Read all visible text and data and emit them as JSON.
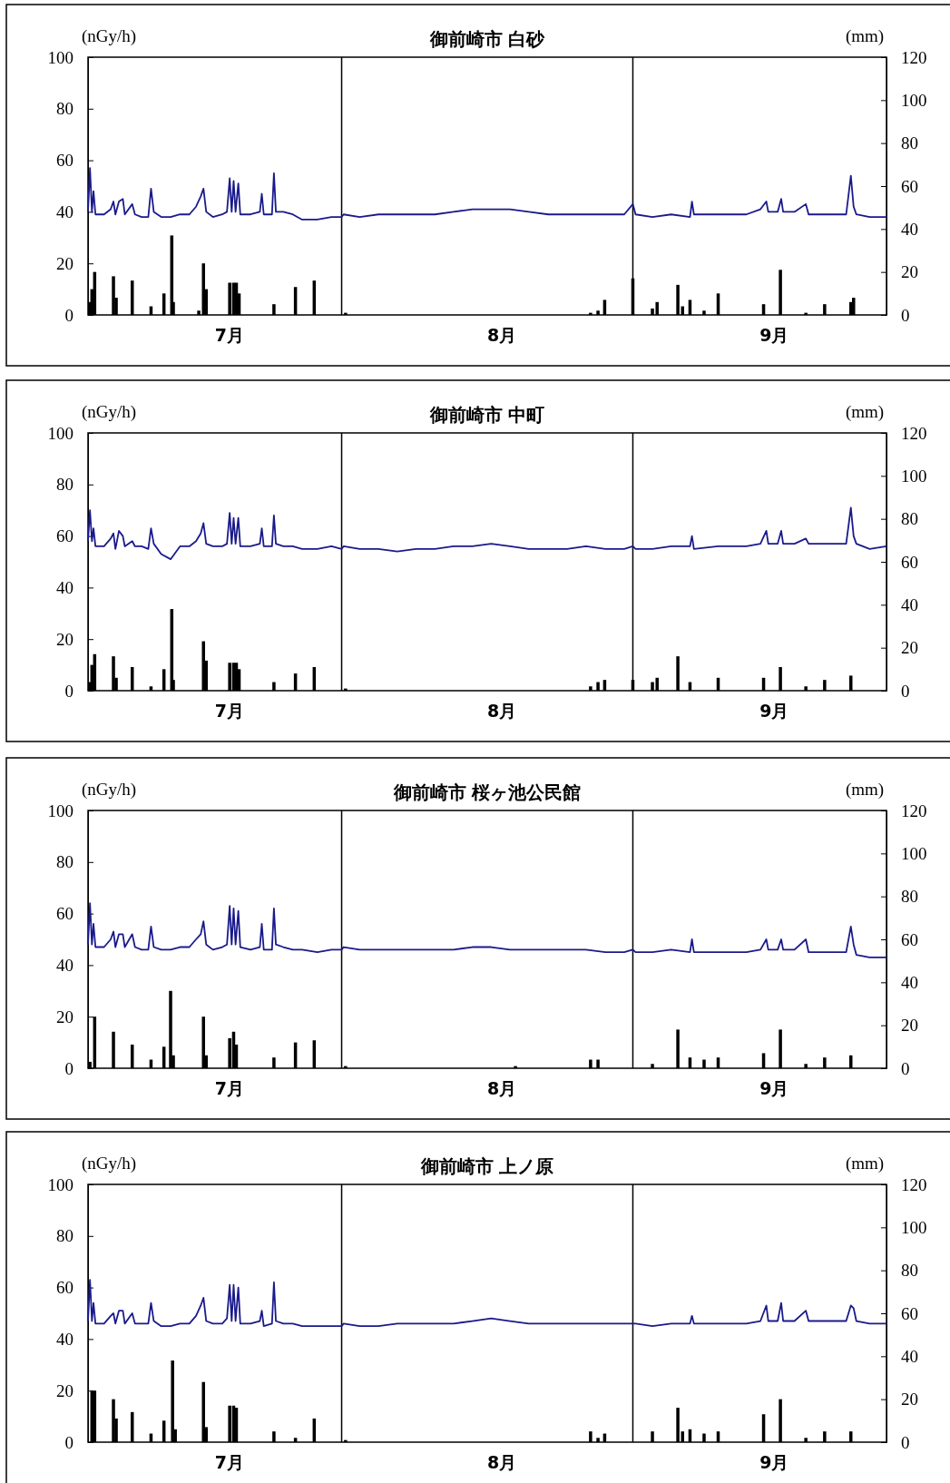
{
  "chart_data": [
    {
      "type": "line",
      "title": "御前崎市 白砂",
      "ylabel": "(nGy/h)",
      "y2label": "(mm)",
      "xlim": [
        "--07-05T00:00",
        "--09-28T00:00"
      ],
      "xticks": [
        {
          "value": "--07-20",
          "label": "7月"
        },
        {
          "value": "--08-18",
          "label": "8月"
        },
        {
          "value": "--09-16",
          "label": "9月"
        }
      ],
      "ylim": [
        0,
        100
      ],
      "yticks": [
        0,
        20,
        40,
        60,
        80,
        100
      ],
      "y2lim": [
        0,
        120
      ],
      "y2ticks": [
        0,
        20,
        40,
        60,
        80,
        100,
        120
      ],
      "ref_lines": [
        {
          "axis": "x",
          "value": "--08-01",
          "color": "#000000"
        },
        {
          "axis": "x",
          "value": "--09-01",
          "color": "#000000"
        }
      ],
      "series": [
        {
          "color": "#1a1a8c",
          "x": [
            "--07-05T00:00",
            "--07-05T05:00",
            "--07-05T10:00",
            "--07-05T14:00",
            "--07-05T19:00",
            "--07-06T17:00",
            "--07-07T10:00",
            "--07-07T17:00",
            "--07-07T22:00",
            "--07-08T07:00",
            "--07-08T17:00",
            "--07-08T22:00",
            "--07-09T17:00",
            "--07-10T00:00",
            "--07-10T17:00",
            "--07-11T10:00",
            "--07-11T17:00",
            "--07-12T00:00",
            "--07-12T19:00",
            "--07-13T19:00",
            "--07-14T19:00",
            "--07-15T19:00",
            "--07-16T12:00",
            "--07-17T00:00",
            "--07-17T07:00",
            "--07-17T14:00",
            "--07-18T07:00",
            "--07-19T07:00",
            "--07-19T19:00",
            "--07-20T02:00",
            "--07-20T07:00",
            "--07-20T12:00",
            "--07-20T17:00",
            "--07-21T00:00",
            "--07-21T05:00",
            "--07-22T07:00",
            "--07-23T07:00",
            "--07-23T12:00",
            "--07-23T17:00",
            "--07-24T14:00",
            "--07-24T19:00",
            "--07-25T00:00",
            "--07-25T19:00",
            "--07-26T19:00",
            "--07-27T19:00",
            "--07-29T10:00",
            "--07-30T22:00",
            "--08-01T00:00",
            "--08-01T05:00",
            "--08-02T22:00",
            "--08-04T22:00",
            "--08-06T22:00",
            "--08-08T22:00",
            "--08-10T22:00",
            "--08-12T22:00",
            "--08-14T22:00",
            "--08-16T22:00",
            "--08-18T22:00",
            "--08-20T22:00",
            "--08-23T00:00",
            "--08-25T00:00",
            "--08-27T00:00",
            "--08-29T02:00",
            "--08-31T02:00",
            "--09-01T00:00",
            "--09-01T07:00",
            "--09-03T02:00",
            "--09-05T02:00",
            "--09-07T02:00",
            "--09-07T07:00",
            "--09-07T12:00",
            "--09-10T02:00",
            "--09-13T02:00",
            "--09-14T14:00",
            "--09-15T05:00",
            "--09-15T10:00",
            "--09-16T10:00",
            "--09-16T19:00",
            "--09-17T00:00",
            "--09-18T05:00",
            "--09-19T10:00",
            "--09-19T17:00",
            "--09-21T17:00",
            "--09-23T17:00",
            "--09-24T05:00",
            "--09-24T12:00",
            "--09-24T19:00",
            "--09-26T05:00",
            "--09-28T00:00"
          ],
          "values": [
            40,
            57,
            40,
            48,
            39,
            39,
            41,
            44,
            39,
            44,
            45,
            39,
            43,
            39,
            38,
            38,
            49,
            40,
            38,
            38,
            39,
            39,
            42,
            46,
            49,
            40,
            38,
            39,
            40,
            53,
            40,
            52,
            40,
            51,
            39,
            39,
            40,
            47,
            39,
            39,
            55,
            40,
            40,
            39,
            37,
            37,
            38,
            38,
            39,
            38,
            39,
            39,
            39,
            39,
            40,
            41,
            41,
            41,
            40,
            39,
            39,
            39,
            39,
            39,
            43,
            39,
            38,
            39,
            38,
            44,
            39,
            39,
            39,
            41,
            44,
            40,
            40,
            45,
            40,
            40,
            43,
            39,
            39,
            39,
            54,
            42,
            39,
            38,
            38
          ]
        },
        {
          "type": "bar",
          "axis": "y2",
          "color": "#000000",
          "x": [
            "--07-05T05:00",
            "--07-05T10:00",
            "--07-05T17:00",
            "--07-07T17:00",
            "--07-08T00:00",
            "--07-09T17:00",
            "--07-11T17:00",
            "--07-13T02:00",
            "--07-13T22:00",
            "--07-14T02:00",
            "--07-16T19:00",
            "--07-17T07:00",
            "--07-17T14:00",
            "--07-20T02:00",
            "--07-20T12:00",
            "--07-20T19:00",
            "--07-21T02:00",
            "--07-24T19:00",
            "--07-27T02:00",
            "--07-29T02:00",
            "--08-01T10:00",
            "--08-27T12:00",
            "--08-28T07:00",
            "--08-29T00:00",
            "--09-01T00:00",
            "--09-03T02:00",
            "--09-03T14:00",
            "--09-05T19:00",
            "--09-06T07:00",
            "--09-07T02:00",
            "--09-08T14:00",
            "--09-10T02:00",
            "--09-14T22:00",
            "--09-16T17:00",
            "--09-19T10:00",
            "--09-21T10:00",
            "--09-24T05:00",
            "--09-24T12:00"
          ],
          "values": [
            6,
            12,
            20,
            18,
            8,
            16,
            4,
            10,
            37,
            6,
            2,
            24,
            12,
            15,
            15,
            15,
            10,
            5,
            13,
            16,
            1,
            1,
            2,
            7,
            17,
            3,
            6,
            14,
            4,
            7,
            2,
            10,
            5,
            21,
            1,
            5,
            6,
            8
          ]
        }
      ]
    },
    {
      "type": "line",
      "title": "御前崎市 中町",
      "ylabel": "(nGy/h)",
      "y2label": "(mm)",
      "xlim": [
        "--07-05T00:00",
        "--09-28T00:00"
      ],
      "xticks": [
        {
          "value": "--07-20",
          "label": "7月"
        },
        {
          "value": "--08-18",
          "label": "8月"
        },
        {
          "value": "--09-16",
          "label": "9月"
        }
      ],
      "ylim": [
        0,
        100
      ],
      "yticks": [
        0,
        20,
        40,
        60,
        80,
        100
      ],
      "y2lim": [
        0,
        120
      ],
      "y2ticks": [
        0,
        20,
        40,
        60,
        80,
        100,
        120
      ],
      "ref_lines": [
        {
          "axis": "x",
          "value": "--08-01",
          "color": "#000000"
        },
        {
          "axis": "x",
          "value": "--09-01",
          "color": "#000000"
        }
      ],
      "series": [
        {
          "color": "#1a1a8c",
          "x": [
            "--07-05T00:00",
            "--07-05T05:00",
            "--07-05T10:00",
            "--07-05T14:00",
            "--07-05T19:00",
            "--07-06T17:00",
            "--07-07T10:00",
            "--07-07T17:00",
            "--07-07T22:00",
            "--07-08T07:00",
            "--07-08T17:00",
            "--07-08T22:00",
            "--07-09T17:00",
            "--07-10T00:00",
            "--07-10T17:00",
            "--07-11T10:00",
            "--07-11T17:00",
            "--07-12T00:00",
            "--07-12T19:00",
            "--07-13T19:00",
            "--07-14T19:00",
            "--07-15T19:00",
            "--07-16T12:00",
            "--07-17T00:00",
            "--07-17T07:00",
            "--07-17T14:00",
            "--07-18T07:00",
            "--07-19T07:00",
            "--07-19T19:00",
            "--07-20T02:00",
            "--07-20T07:00",
            "--07-20T12:00",
            "--07-20T17:00",
            "--07-21T00:00",
            "--07-21T05:00",
            "--07-22T07:00",
            "--07-23T07:00",
            "--07-23T12:00",
            "--07-23T17:00",
            "--07-24T14:00",
            "--07-24T19:00",
            "--07-25T00:00",
            "--07-25T19:00",
            "--07-26T19:00",
            "--07-27T19:00",
            "--07-29T10:00",
            "--07-30T22:00",
            "--08-01T00:00",
            "--08-01T05:00",
            "--08-02T22:00",
            "--08-04T22:00",
            "--08-06T22:00",
            "--08-08T22:00",
            "--08-10T22:00",
            "--08-12T22:00",
            "--08-14T22:00",
            "--08-16T22:00",
            "--08-18T22:00",
            "--08-20T22:00",
            "--08-23T00:00",
            "--08-25T00:00",
            "--08-27T00:00",
            "--08-29T02:00",
            "--08-31T02:00",
            "--09-01T00:00",
            "--09-01T07:00",
            "--09-03T02:00",
            "--09-05T02:00",
            "--09-07T02:00",
            "--09-07T07:00",
            "--09-07T12:00",
            "--09-10T02:00",
            "--09-13T02:00",
            "--09-14T14:00",
            "--09-15T05:00",
            "--09-15T10:00",
            "--09-16T10:00",
            "--09-16T19:00",
            "--09-17T00:00",
            "--09-18T05:00",
            "--09-19T10:00",
            "--09-19T17:00",
            "--09-21T17:00",
            "--09-23T17:00",
            "--09-24T05:00",
            "--09-24T12:00",
            "--09-24T19:00",
            "--09-26T05:00",
            "--09-28T00:00"
          ],
          "values": [
            58,
            70,
            58,
            63,
            56,
            56,
            59,
            61,
            55,
            62,
            60,
            56,
            58,
            56,
            56,
            55,
            63,
            57,
            53,
            51,
            56,
            56,
            58,
            61,
            65,
            57,
            56,
            56,
            57,
            69,
            57,
            67,
            57,
            67,
            56,
            56,
            57,
            63,
            56,
            56,
            68,
            57,
            56,
            56,
            55,
            55,
            56,
            55,
            56,
            55,
            55,
            54,
            55,
            55,
            56,
            56,
            57,
            56,
            55,
            55,
            55,
            56,
            55,
            55,
            56,
            55,
            55,
            56,
            56,
            60,
            55,
            56,
            56,
            57,
            62,
            57,
            57,
            62,
            57,
            57,
            59,
            57,
            57,
            57,
            71,
            60,
            57,
            55,
            56
          ]
        },
        {
          "type": "bar",
          "axis": "y2",
          "color": "#000000",
          "x": [
            "--07-05T05:00",
            "--07-05T10:00",
            "--07-05T17:00",
            "--07-07T17:00",
            "--07-08T00:00",
            "--07-09T17:00",
            "--07-11T17:00",
            "--07-13T02:00",
            "--07-13T22:00",
            "--07-14T02:00",
            "--07-17T07:00",
            "--07-17T14:00",
            "--07-20T02:00",
            "--07-20T12:00",
            "--07-20T19:00",
            "--07-21T02:00",
            "--07-24T19:00",
            "--07-27T02:00",
            "--07-29T02:00",
            "--08-01T10:00",
            "--08-27T12:00",
            "--08-28T07:00",
            "--08-29T00:00",
            "--09-01T00:00",
            "--09-03T02:00",
            "--09-03T14:00",
            "--09-05T19:00",
            "--09-07T02:00",
            "--09-10T02:00",
            "--09-14T22:00",
            "--09-16T17:00",
            "--09-19T10:00",
            "--09-21T10:00",
            "--09-24T05:00"
          ],
          "values": [
            4,
            12,
            17,
            16,
            6,
            11,
            2,
            10,
            38,
            5,
            23,
            14,
            13,
            13,
            13,
            10,
            4,
            8,
            11,
            1,
            2,
            4,
            5,
            5,
            4,
            6,
            16,
            4,
            6,
            6,
            11,
            2,
            5,
            7
          ]
        }
      ]
    },
    {
      "type": "line",
      "title": "御前崎市 桜ヶ池公民館",
      "ylabel": "(nGy/h)",
      "y2label": "(mm)",
      "xlim": [
        "--07-05T00:00",
        "--09-28T00:00"
      ],
      "xticks": [
        {
          "value": "--07-20",
          "label": "7月"
        },
        {
          "value": "--08-18",
          "label": "8月"
        },
        {
          "value": "--09-16",
          "label": "9月"
        }
      ],
      "ylim": [
        0,
        100
      ],
      "yticks": [
        0,
        20,
        40,
        60,
        80,
        100
      ],
      "y2lim": [
        0,
        120
      ],
      "y2ticks": [
        0,
        20,
        40,
        60,
        80,
        100,
        120
      ],
      "ref_lines": [
        {
          "axis": "x",
          "value": "--08-01",
          "color": "#000000"
        },
        {
          "axis": "x",
          "value": "--09-01",
          "color": "#000000"
        }
      ],
      "series": [
        {
          "color": "#1a1a8c",
          "x": [
            "--07-05T00:00",
            "--07-05T05:00",
            "--07-05T10:00",
            "--07-05T14:00",
            "--07-05T19:00",
            "--07-06T17:00",
            "--07-07T10:00",
            "--07-07T17:00",
            "--07-07T22:00",
            "--07-08T07:00",
            "--07-08T17:00",
            "--07-08T22:00",
            "--07-09T17:00",
            "--07-10T00:00",
            "--07-10T17:00",
            "--07-11T10:00",
            "--07-11T17:00",
            "--07-12T00:00",
            "--07-12T19:00",
            "--07-13T19:00",
            "--07-14T19:00",
            "--07-15T19:00",
            "--07-16T12:00",
            "--07-17T00:00",
            "--07-17T07:00",
            "--07-17T14:00",
            "--07-18T07:00",
            "--07-19T07:00",
            "--07-19T19:00",
            "--07-20T02:00",
            "--07-20T07:00",
            "--07-20T12:00",
            "--07-20T17:00",
            "--07-21T00:00",
            "--07-21T05:00",
            "--07-22T07:00",
            "--07-23T07:00",
            "--07-23T12:00",
            "--07-23T17:00",
            "--07-24T14:00",
            "--07-24T19:00",
            "--07-25T00:00",
            "--07-25T19:00",
            "--07-26T19:00",
            "--07-27T19:00",
            "--07-29T10:00",
            "--07-30T22:00",
            "--08-01T00:00",
            "--08-01T05:00",
            "--08-02T22:00",
            "--08-04T22:00",
            "--08-06T22:00",
            "--08-08T22:00",
            "--08-10T22:00",
            "--08-12T22:00",
            "--08-14T22:00",
            "--08-16T22:00",
            "--08-18T22:00",
            "--08-20T22:00",
            "--08-23T00:00",
            "--08-25T00:00",
            "--08-27T00:00",
            "--08-29T02:00",
            "--08-31T02:00",
            "--09-01T00:00",
            "--09-01T07:00",
            "--09-03T02:00",
            "--09-05T02:00",
            "--09-07T02:00",
            "--09-07T07:00",
            "--09-07T12:00",
            "--09-10T02:00",
            "--09-13T02:00",
            "--09-14T14:00",
            "--09-15T05:00",
            "--09-15T10:00",
            "--09-16T10:00",
            "--09-16T19:00",
            "--09-17T00:00",
            "--09-18T05:00",
            "--09-19T10:00",
            "--09-19T17:00",
            "--09-21T17:00",
            "--09-23T17:00",
            "--09-24T05:00",
            "--09-24T12:00",
            "--09-24T19:00",
            "--09-26T05:00",
            "--09-28T00:00"
          ],
          "values": [
            48,
            64,
            48,
            56,
            47,
            47,
            50,
            53,
            47,
            52,
            52,
            47,
            52,
            47,
            46,
            46,
            55,
            47,
            46,
            46,
            47,
            47,
            50,
            52,
            57,
            48,
            46,
            47,
            48,
            63,
            48,
            62,
            48,
            61,
            47,
            46,
            47,
            56,
            46,
            46,
            62,
            48,
            47,
            46,
            46,
            45,
            46,
            46,
            47,
            46,
            46,
            46,
            46,
            46,
            46,
            47,
            47,
            46,
            46,
            46,
            46,
            46,
            45,
            45,
            46,
            45,
            45,
            46,
            45,
            50,
            45,
            45,
            45,
            46,
            50,
            46,
            46,
            50,
            46,
            46,
            50,
            45,
            45,
            45,
            55,
            48,
            44,
            43,
            43
          ]
        },
        {
          "type": "bar",
          "axis": "y2",
          "color": "#000000",
          "x": [
            "--07-05T05:00",
            "--07-05T17:00",
            "--07-07T17:00",
            "--07-09T17:00",
            "--07-11T17:00",
            "--07-13T02:00",
            "--07-13T19:00",
            "--07-14T02:00",
            "--07-17T07:00",
            "--07-17T14:00",
            "--07-20T02:00",
            "--07-20T12:00",
            "--07-20T19:00",
            "--07-24T19:00",
            "--07-27T02:00",
            "--07-29T02:00",
            "--08-01T10:00",
            "--08-19T12:00",
            "--08-27T12:00",
            "--08-28T07:00",
            "--09-03T02:00",
            "--09-05T19:00",
            "--09-07T02:00",
            "--09-08T14:00",
            "--09-10T02:00",
            "--09-14T22:00",
            "--09-16T17:00",
            "--09-19T10:00",
            "--09-21T10:00",
            "--09-24T05:00"
          ],
          "values": [
            3,
            24,
            17,
            11,
            4,
            10,
            36,
            6,
            24,
            6,
            14,
            17,
            11,
            5,
            12,
            13,
            1,
            1,
            4,
            4,
            2,
            18,
            5,
            4,
            5,
            7,
            18,
            2,
            5,
            6
          ]
        }
      ]
    },
    {
      "type": "line",
      "title": "御前崎市 上ノ原",
      "ylabel": "(nGy/h)",
      "y2label": "(mm)",
      "xlim": [
        "--07-05T00:00",
        "--09-28T00:00"
      ],
      "xticks": [
        {
          "value": "--07-20",
          "label": "7月"
        },
        {
          "value": "--08-18",
          "label": "8月"
        },
        {
          "value": "--09-16",
          "label": "9月"
        }
      ],
      "ylim": [
        0,
        100
      ],
      "yticks": [
        0,
        20,
        40,
        60,
        80,
        100
      ],
      "y2lim": [
        0,
        120
      ],
      "y2ticks": [
        0,
        20,
        40,
        60,
        80,
        100,
        120
      ],
      "ref_lines": [
        {
          "axis": "x",
          "value": "--08-01",
          "color": "#000000"
        },
        {
          "axis": "x",
          "value": "--09-01",
          "color": "#000000"
        }
      ],
      "series": [
        {
          "color": "#1a1a8c",
          "x": [
            "--07-05T00:00",
            "--07-05T05:00",
            "--07-05T10:00",
            "--07-05T14:00",
            "--07-05T19:00",
            "--07-06T17:00",
            "--07-07T10:00",
            "--07-07T17:00",
            "--07-07T22:00",
            "--07-08T07:00",
            "--07-08T17:00",
            "--07-08T22:00",
            "--07-09T17:00",
            "--07-10T00:00",
            "--07-10T17:00",
            "--07-11T10:00",
            "--07-11T17:00",
            "--07-12T00:00",
            "--07-12T19:00",
            "--07-13T19:00",
            "--07-14T19:00",
            "--07-15T19:00",
            "--07-16T12:00",
            "--07-17T00:00",
            "--07-17T07:00",
            "--07-17T14:00",
            "--07-18T07:00",
            "--07-19T07:00",
            "--07-19T19:00",
            "--07-20T02:00",
            "--07-20T07:00",
            "--07-20T12:00",
            "--07-20T17:00",
            "--07-21T00:00",
            "--07-21T05:00",
            "--07-22T07:00",
            "--07-23T07:00",
            "--07-23T12:00",
            "--07-23T17:00",
            "--07-24T14:00",
            "--07-24T19:00",
            "--07-25T00:00",
            "--07-25T19:00",
            "--07-26T19:00",
            "--07-27T19:00",
            "--07-29T10:00",
            "--07-30T22:00",
            "--08-01T00:00",
            "--08-01T05:00",
            "--08-02T22:00",
            "--08-04T22:00",
            "--08-06T22:00",
            "--08-08T22:00",
            "--08-10T22:00",
            "--08-12T22:00",
            "--08-14T22:00",
            "--08-16T22:00",
            "--08-18T22:00",
            "--08-20T22:00",
            "--08-23T00:00",
            "--08-25T00:00",
            "--08-27T00:00",
            "--08-29T02:00",
            "--08-31T02:00",
            "--09-01T00:00",
            "--09-01T07:00",
            "--09-03T02:00",
            "--09-05T02:00",
            "--09-07T02:00",
            "--09-07T07:00",
            "--09-07T12:00",
            "--09-10T02:00",
            "--09-13T02:00",
            "--09-14T14:00",
            "--09-15T05:00",
            "--09-15T10:00",
            "--09-16T10:00",
            "--09-16T19:00",
            "--09-17T00:00",
            "--09-18T05:00",
            "--09-19T10:00",
            "--09-19T17:00",
            "--09-21T17:00",
            "--09-23T17:00",
            "--09-24T05:00",
            "--09-24T12:00",
            "--09-24T19:00",
            "--09-26T05:00",
            "--09-28T00:00"
          ],
          "values": [
            47,
            63,
            47,
            54,
            46,
            46,
            49,
            50,
            46,
            51,
            51,
            46,
            50,
            46,
            46,
            46,
            54,
            47,
            45,
            45,
            46,
            46,
            49,
            53,
            56,
            47,
            46,
            46,
            48,
            61,
            47,
            61,
            47,
            60,
            46,
            46,
            47,
            51,
            45,
            46,
            62,
            47,
            46,
            46,
            45,
            45,
            45,
            45,
            46,
            45,
            45,
            46,
            46,
            46,
            46,
            47,
            48,
            47,
            46,
            46,
            46,
            46,
            46,
            46,
            46,
            46,
            45,
            46,
            46,
            49,
            46,
            46,
            46,
            47,
            53,
            47,
            47,
            54,
            47,
            47,
            51,
            47,
            47,
            47,
            53,
            52,
            47,
            46,
            46
          ]
        },
        {
          "type": "bar",
          "axis": "y2",
          "color": "#000000",
          "x": [
            "--07-05T10:00",
            "--07-05T17:00",
            "--07-07T17:00",
            "--07-08T00:00",
            "--07-09T17:00",
            "--07-11T17:00",
            "--07-13T02:00",
            "--07-14T00:00",
            "--07-14T07:00",
            "--07-17T07:00",
            "--07-17T14:00",
            "--07-20T02:00",
            "--07-20T12:00",
            "--07-20T19:00",
            "--07-24T19:00",
            "--07-27T02:00",
            "--07-29T02:00",
            "--08-01T10:00",
            "--08-27T12:00",
            "--08-28T07:00",
            "--08-29T00:00",
            "--09-03T02:00",
            "--09-05T19:00",
            "--09-06T07:00",
            "--09-07T02:00",
            "--09-08T14:00",
            "--09-10T02:00",
            "--09-14T22:00",
            "--09-16T17:00",
            "--09-19T10:00",
            "--09-21T10:00",
            "--09-24T05:00"
          ],
          "values": [
            24,
            24,
            20,
            11,
            14,
            4,
            10,
            38,
            6,
            28,
            7,
            17,
            17,
            16,
            5,
            2,
            11,
            1,
            5,
            2,
            4,
            5,
            16,
            5,
            6,
            4,
            5,
            13,
            20,
            2,
            5,
            5
          ]
        }
      ]
    }
  ]
}
